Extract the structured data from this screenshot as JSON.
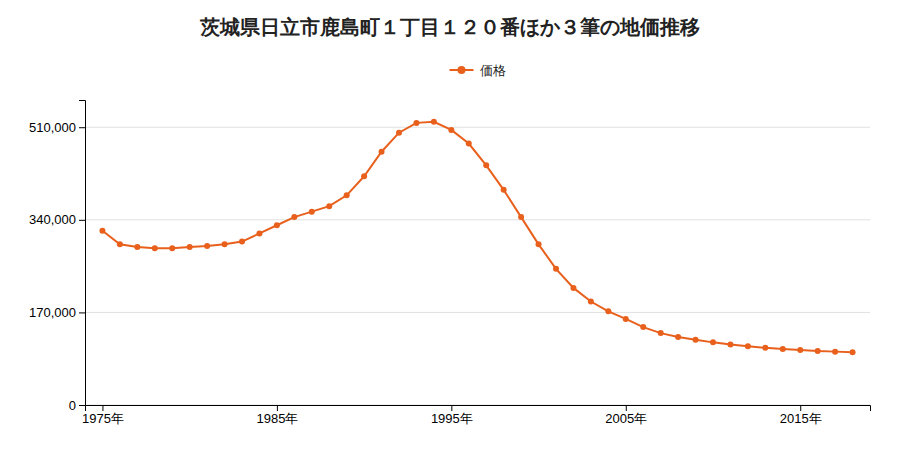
{
  "chart_data": {
    "type": "line",
    "title": "茨城県日立市鹿島町１丁目１２０番ほか３筆の地価推移",
    "x": [
      1975,
      1976,
      1977,
      1978,
      1979,
      1980,
      1981,
      1982,
      1983,
      1984,
      1985,
      1986,
      1987,
      1988,
      1989,
      1990,
      1991,
      1992,
      1993,
      1994,
      1995,
      1996,
      1997,
      1998,
      1999,
      2000,
      2001,
      2002,
      2003,
      2004,
      2005,
      2006,
      2007,
      2008,
      2009,
      2010,
      2011,
      2012,
      2013,
      2014,
      2015,
      2016,
      2017,
      2018
    ],
    "series": [
      {
        "name": "価格",
        "color": "#e8601c",
        "marker": "circle",
        "line_style": "solid",
        "values": [
          320000,
          295000,
          290000,
          288000,
          288000,
          290000,
          292000,
          295000,
          300000,
          315000,
          330000,
          345000,
          355000,
          365000,
          385000,
          420000,
          465000,
          500000,
          518000,
          520000,
          505000,
          480000,
          440000,
          395000,
          345000,
          295000,
          250000,
          215000,
          190000,
          172000,
          158000,
          143000,
          132000,
          125000,
          120000,
          115000,
          111000,
          108000,
          105000,
          103000,
          101000,
          99000,
          98000,
          97000
        ]
      }
    ],
    "xlim": [
      1974,
      2019
    ],
    "xticks": [
      {
        "value": 1975,
        "label": "1975年"
      },
      {
        "value": 1985,
        "label": "1985年"
      },
      {
        "value": 1995,
        "label": "1995年"
      },
      {
        "value": 2005,
        "label": "2005年"
      },
      {
        "value": 2015,
        "label": "2015年"
      }
    ],
    "ylim": [
      0,
      560000
    ],
    "yticks": [
      0,
      {
        "value": 170000,
        "label": "170,000"
      },
      {
        "value": 340000,
        "label": "340,000"
      },
      {
        "value": 510000,
        "label": "510,000"
      }
    ],
    "grid": true,
    "legend": "top"
  }
}
